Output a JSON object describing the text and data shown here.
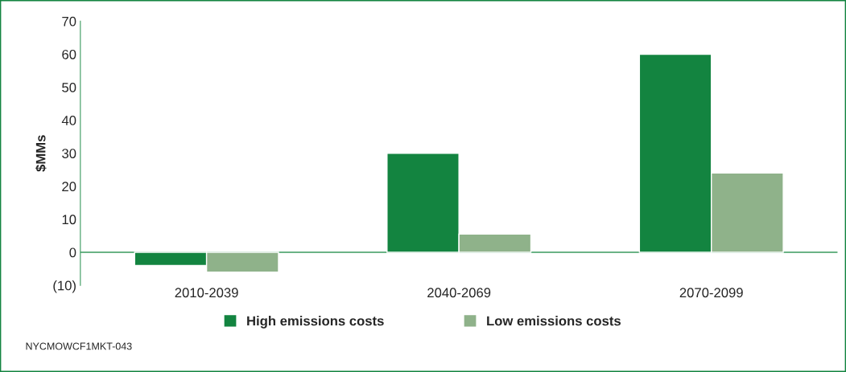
{
  "chart_data": {
    "type": "bar",
    "ylabel": "$MMs",
    "categories": [
      "2010-2039",
      "2040-2069",
      "2070-2099"
    ],
    "series": [
      {
        "name": "High emissions costs",
        "color": "#138440",
        "values": [
          -4,
          30,
          60
        ]
      },
      {
        "name": "Low emissions costs",
        "color": "#8fb28a",
        "values": [
          -6,
          5.5,
          24
        ]
      }
    ],
    "ylim": [
      -10,
      70
    ],
    "yticks": [
      {
        "value": -10,
        "label": "(10)"
      },
      0,
      10,
      20,
      30,
      40,
      50,
      60,
      70
    ],
    "ref_lines": [
      {
        "axis": "y",
        "value": 0,
        "color": "#3a9a5e"
      }
    ],
    "grid": false,
    "legend": "bottom",
    "annotations": [
      "NYCMOWCF1MKT-043"
    ]
  }
}
